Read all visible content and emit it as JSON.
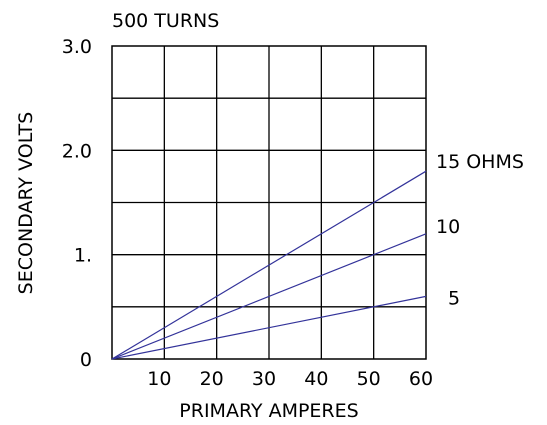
{
  "chart_data": {
    "type": "line",
    "title": "500 TURNS",
    "xlabel": "PRIMARY AMPERES",
    "ylabel": "SECONDARY VOLTS",
    "xlim": [
      0,
      60
    ],
    "ylim": [
      0,
      3.0
    ],
    "x_ticks": [
      10,
      20,
      30,
      40,
      50,
      60
    ],
    "x_tick_labels": [
      "10",
      "20",
      "30",
      "40",
      "50",
      "60"
    ],
    "y_ticks": [
      0,
      1,
      2,
      3
    ],
    "y_tick_labels": [
      "0",
      "1.",
      "2.0",
      "3.0"
    ],
    "grid": true,
    "series": [
      {
        "name": "15 OHMS",
        "x": [
          0,
          60
        ],
        "y": [
          0,
          1.8
        ]
      },
      {
        "name": "10",
        "x": [
          0,
          60
        ],
        "y": [
          0,
          1.2
        ]
      },
      {
        "name": "5",
        "x": [
          0,
          60
        ],
        "y": [
          0,
          0.6
        ]
      }
    ],
    "colors": {
      "series": "#33339a",
      "grid": "#000000"
    }
  }
}
